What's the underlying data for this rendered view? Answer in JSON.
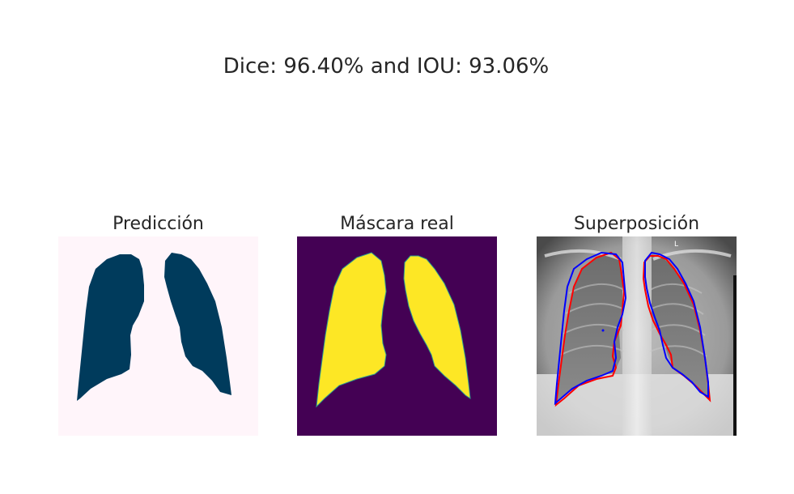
{
  "figure": {
    "suptitle": "Dice: 96.40% and IOU: 93.06%"
  },
  "panels": [
    {
      "title": "Predicción",
      "background": "#fff5fa",
      "mask_color": "#003b5c"
    },
    {
      "title": "Máscara real",
      "background": "#440154",
      "mask_color": "#fde725"
    },
    {
      "title": "Superposición",
      "prediction_contour_color": "#0000ff",
      "ground_truth_contour_color": "#ff0000"
    }
  ]
}
